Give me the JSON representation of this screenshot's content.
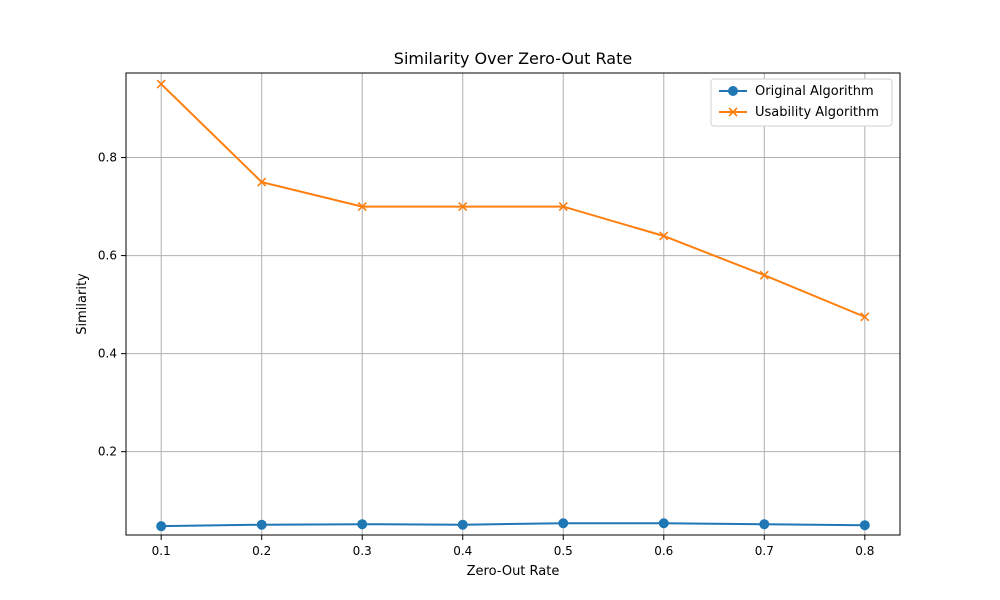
{
  "chart_data": {
    "type": "line",
    "title": "Similarity Over Zero-Out Rate",
    "xlabel": "Zero-Out Rate",
    "ylabel": "Similarity",
    "x": [
      0.1,
      0.2,
      0.3,
      0.4,
      0.5,
      0.6,
      0.7,
      0.8
    ],
    "xtick_labels": [
      "0.1",
      "0.2",
      "0.3",
      "0.4",
      "0.5",
      "0.6",
      "0.7",
      "0.8"
    ],
    "ytick_values": [
      0.2,
      0.4,
      0.6,
      0.8
    ],
    "ytick_labels": [
      "0.2",
      "0.4",
      "0.6",
      "0.8"
    ],
    "xlim": [
      0.065,
      0.835
    ],
    "ylim": [
      0.03,
      0.9725
    ],
    "grid": true,
    "legend": "top-right",
    "series": [
      {
        "name": "Original Algorithm",
        "color": "#1f77b4",
        "marker": "circle",
        "values": [
          0.048,
          0.051,
          0.052,
          0.051,
          0.054,
          0.054,
          0.052,
          0.05
        ]
      },
      {
        "name": "Usability Algorithm",
        "color": "#ff7f0e",
        "marker": "x",
        "values": [
          0.95,
          0.75,
          0.7,
          0.7,
          0.7,
          0.64,
          0.56,
          0.475
        ]
      }
    ]
  }
}
